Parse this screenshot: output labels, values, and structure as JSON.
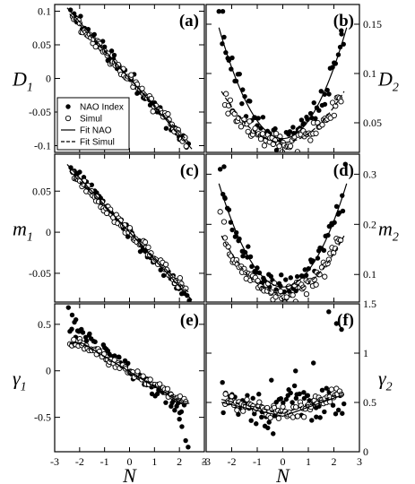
{
  "chart_data": [
    {
      "id": "a",
      "type": "scatter",
      "label": "(a)",
      "ylabel": "D",
      "ylabel_sub": "1",
      "xlim": [
        -3,
        3
      ],
      "ylim": [
        -0.11,
        0.11
      ],
      "yticks": [
        0.1,
        0.05,
        0,
        -0.05,
        -0.1
      ],
      "ytick_labels": [
        "0.1",
        "0.05",
        "0",
        "-0.05",
        "-0.1"
      ],
      "legend": {
        "placement": "bottom-left",
        "entries": [
          {
            "marker": "filled-circle",
            "label": "NAO Index"
          },
          {
            "marker": "open-circle",
            "label": "Simul"
          },
          {
            "marker": "solid-line",
            "label": "Fit NAO"
          },
          {
            "marker": "dashed-line",
            "label": "Fit Simul"
          }
        ]
      },
      "series": [
        {
          "name": "NAO Index",
          "style": "filled",
          "model": {
            "kind": "poly",
            "coef": [
              0,
              -0.042
            ]
          },
          "noise": 0.007,
          "range": [
            -2.4,
            2.4
          ],
          "n": 70,
          "seed": 11
        },
        {
          "name": "Simul",
          "style": "open",
          "model": {
            "kind": "poly",
            "coef": [
              0,
              -0.04
            ]
          },
          "noise": 0.006,
          "range": [
            -2.3,
            2.3
          ],
          "n": 80,
          "seed": 12
        },
        {
          "name": "Fit NAO",
          "style": "solid",
          "model": {
            "kind": "poly",
            "coef": [
              0,
              -0.042
            ]
          },
          "range": [
            -2.5,
            2.5
          ]
        },
        {
          "name": "Fit Simul",
          "style": "dashed",
          "model": {
            "kind": "poly",
            "coef": [
              0,
              -0.04
            ]
          },
          "range": [
            -2.4,
            2.4
          ]
        }
      ]
    },
    {
      "id": "b",
      "type": "scatter",
      "label": "(b)",
      "ylabel": "D",
      "ylabel_sub": "2",
      "xlim": [
        -3,
        3
      ],
      "ylim": [
        0.02,
        0.17
      ],
      "yticks": [
        0.15,
        0.1,
        0.05
      ],
      "ytick_labels": [
        "0.15",
        "0.1",
        "0.05"
      ],
      "series": [
        {
          "name": "NAO Index",
          "style": "filled",
          "model": {
            "kind": "poly",
            "coef": [
              0.034,
              0,
              0.018
            ]
          },
          "noise": 0.008,
          "range": [
            -2.4,
            2.4
          ],
          "n": 70,
          "seed": 21,
          "extra": [
            [
              -2.5,
              0.163
            ],
            [
              -2.35,
              0.163
            ],
            [
              2.3,
              0.14
            ]
          ]
        },
        {
          "name": "Simul",
          "style": "open",
          "model": {
            "kind": "poly",
            "coef": [
              0.03,
              0,
              0.009
            ]
          },
          "noise": 0.006,
          "range": [
            -2.3,
            2.3
          ],
          "n": 80,
          "seed": 22
        },
        {
          "name": "Fit NAO",
          "style": "solid",
          "model": {
            "kind": "poly",
            "coef": [
              0.034,
              0,
              0.018
            ]
          },
          "range": [
            -2.5,
            2.5
          ]
        },
        {
          "name": "Fit Simul",
          "style": "dashed",
          "model": {
            "kind": "poly",
            "coef": [
              0.03,
              0,
              0.009
            ]
          },
          "range": [
            -2.4,
            2.4
          ]
        }
      ]
    },
    {
      "id": "c",
      "type": "scatter",
      "label": "(c)",
      "ylabel": "m",
      "ylabel_sub": "1",
      "xlim": [
        -3,
        3
      ],
      "ylim": [
        -0.085,
        0.095
      ],
      "yticks": [
        0.05,
        0,
        -0.05
      ],
      "ytick_labels": [
        "0.05",
        "0",
        "-0.05"
      ],
      "series": [
        {
          "name": "NAO Index",
          "style": "filled",
          "model": {
            "kind": "poly",
            "coef": [
              0,
              -0.033
            ]
          },
          "noise": 0.005,
          "range": [
            -2.4,
            2.4
          ],
          "n": 70,
          "seed": 31
        },
        {
          "name": "Simul",
          "style": "open",
          "model": {
            "kind": "poly",
            "coef": [
              0,
              -0.031
            ]
          },
          "noise": 0.004,
          "range": [
            -2.3,
            2.3
          ],
          "n": 80,
          "seed": 32
        },
        {
          "name": "Fit NAO",
          "style": "solid",
          "model": {
            "kind": "poly",
            "coef": [
              0,
              -0.033
            ]
          },
          "range": [
            -2.5,
            2.5
          ]
        },
        {
          "name": "Fit Simul",
          "style": "dashed",
          "model": {
            "kind": "poly",
            "coef": [
              0,
              -0.031
            ]
          },
          "range": [
            -2.4,
            2.4
          ]
        }
      ]
    },
    {
      "id": "d",
      "type": "scatter",
      "label": "(d)",
      "ylabel": "m",
      "ylabel_sub": "2",
      "xlim": [
        -3,
        3
      ],
      "ylim": [
        0.045,
        0.34
      ],
      "yticks": [
        0.3,
        0.2,
        0.1
      ],
      "ytick_labels": [
        "0.3",
        "0.2",
        "0.1"
      ],
      "series": [
        {
          "name": "NAO Index",
          "style": "filled",
          "model": {
            "kind": "poly",
            "coef": [
              0.075,
              0,
              0.033
            ]
          },
          "noise": 0.014,
          "range": [
            -2.4,
            2.4
          ],
          "n": 70,
          "seed": 41,
          "extra": [
            [
              -2.45,
              0.31
            ],
            [
              -2.3,
              0.315
            ],
            [
              2.45,
              0.32
            ]
          ]
        },
        {
          "name": "Simul",
          "style": "open",
          "model": {
            "kind": "poly",
            "coef": [
              0.062,
              0,
              0.02
            ]
          },
          "noise": 0.011,
          "range": [
            -2.3,
            2.3
          ],
          "n": 80,
          "seed": 42,
          "extra": [
            [
              -2.45,
              0.225
            ],
            [
              -2.3,
              0.205
            ]
          ]
        },
        {
          "name": "Fit NAO",
          "style": "solid",
          "model": {
            "kind": "poly",
            "coef": [
              0.075,
              0,
              0.033
            ]
          },
          "range": [
            -2.5,
            2.5
          ]
        },
        {
          "name": "Fit Simul",
          "style": "dashed",
          "model": {
            "kind": "poly",
            "coef": [
              0.062,
              0,
              0.02
            ]
          },
          "range": [
            -2.4,
            2.4
          ]
        }
      ]
    },
    {
      "id": "e",
      "type": "scatter",
      "label": "(e)",
      "ylabel": "γ",
      "ylabel_sub": "1",
      "xlim": [
        -3,
        3
      ],
      "ylim": [
        -0.87,
        0.72
      ],
      "xticks": [
        -3,
        -2,
        -1,
        0,
        1,
        2,
        3
      ],
      "xtick_labels": [
        "-3",
        "-2",
        "-1",
        "0",
        "1",
        "2",
        "3"
      ],
      "xlabel": "N",
      "yticks": [
        0.5,
        0,
        -0.5
      ],
      "ytick_labels": [
        "0.5",
        "0",
        "-0.5"
      ],
      "series": [
        {
          "name": "NAO Index",
          "style": "filled",
          "model": {
            "kind": "poly",
            "coef": [
              0.02,
              -0.2
            ]
          },
          "noise": 0.05,
          "range": [
            -2.4,
            2.2
          ],
          "n": 70,
          "seed": 51,
          "extra": [
            [
              -2.45,
              0.68
            ],
            [
              -2.3,
              0.6
            ],
            [
              -2.15,
              0.55
            ],
            [
              2.0,
              -0.52
            ],
            [
              2.1,
              -0.6
            ],
            [
              2.25,
              -0.75
            ],
            [
              2.35,
              -0.82
            ]
          ]
        },
        {
          "name": "Simul",
          "style": "open",
          "model": {
            "kind": "pw",
            "a": 0.27,
            "lo": -2,
            "hi": 2.1,
            "p": [
              [
                -2,
                0.3
              ],
              [
                2.1,
                -0.32
              ]
            ]
          },
          "noise": 0.03,
          "range": [
            -2.4,
            2.3
          ],
          "n": 80,
          "seed": 52
        },
        {
          "name": "Fit NAO",
          "style": "solid",
          "model": {
            "kind": "pw",
            "p": [
              [
                -2.4,
                0.3
              ],
              [
                -1.9,
                0.3
              ],
              [
                2.1,
                -0.35
              ],
              [
                2.4,
                -0.35
              ]
            ]
          },
          "range": [
            -2.4,
            2.4
          ]
        },
        {
          "name": "Fit Simul",
          "style": "dashed",
          "model": {
            "kind": "pw",
            "p": [
              [
                -2.4,
                0.29
              ],
              [
                -1.9,
                0.29
              ],
              [
                2.1,
                -0.33
              ],
              [
                2.4,
                -0.33
              ]
            ]
          },
          "range": [
            -2.4,
            2.4
          ]
        }
      ]
    },
    {
      "id": "f",
      "type": "scatter",
      "label": "(f)",
      "ylabel": "γ",
      "ylabel_sub": "2",
      "xlim": [
        -3,
        3
      ],
      "ylim": [
        0,
        1.5
      ],
      "xticks": [
        -3,
        -2,
        -1,
        0,
        1,
        2,
        3
      ],
      "xtick_labels": [
        "-3",
        "-2",
        "-1",
        "0",
        "1",
        "2",
        "3"
      ],
      "xlabel": "N",
      "yticks": [
        1.5,
        1,
        0.5,
        0
      ],
      "ytick_labels": [
        "1.5",
        "1",
        "0.5",
        "0"
      ],
      "series": [
        {
          "name": "NAO Index",
          "style": "filled",
          "model": {
            "kind": "pw",
            "p": [
              [
                -2.4,
                0.48
              ],
              [
                0,
                0.45
              ],
              [
                2.4,
                0.55
              ]
            ]
          },
          "noise": 0.17,
          "range": [
            -2.4,
            2.4
          ],
          "n": 70,
          "seed": 61,
          "extra": [
            [
              1.8,
              1.42
            ],
            [
              2.1,
              1.3
            ],
            [
              2.3,
              1.24
            ],
            [
              0.5,
              0.82
            ],
            [
              1.2,
              0.9
            ]
          ]
        },
        {
          "name": "Simul",
          "style": "open",
          "model": {
            "kind": "pw",
            "p": [
              [
                -2.4,
                0.55
              ],
              [
                0,
                0.38
              ],
              [
                2.4,
                0.6
              ]
            ]
          },
          "noise": 0.05,
          "range": [
            -2.3,
            2.3
          ],
          "n": 80,
          "seed": 62
        },
        {
          "name": "Fit NAO",
          "style": "solid",
          "model": {
            "kind": "pw",
            "p": [
              [
                -2.4,
                0.5
              ],
              [
                0,
                0.36
              ],
              [
                2.4,
                0.58
              ]
            ]
          },
          "range": [
            -2.4,
            2.4
          ]
        },
        {
          "name": "Fit Simul",
          "style": "dashed",
          "model": {
            "kind": "pw",
            "p": [
              [
                -2.4,
                0.53
              ],
              [
                0,
                0.39
              ],
              [
                2.4,
                0.6
              ]
            ]
          },
          "range": [
            -2.4,
            2.4
          ]
        }
      ]
    }
  ]
}
